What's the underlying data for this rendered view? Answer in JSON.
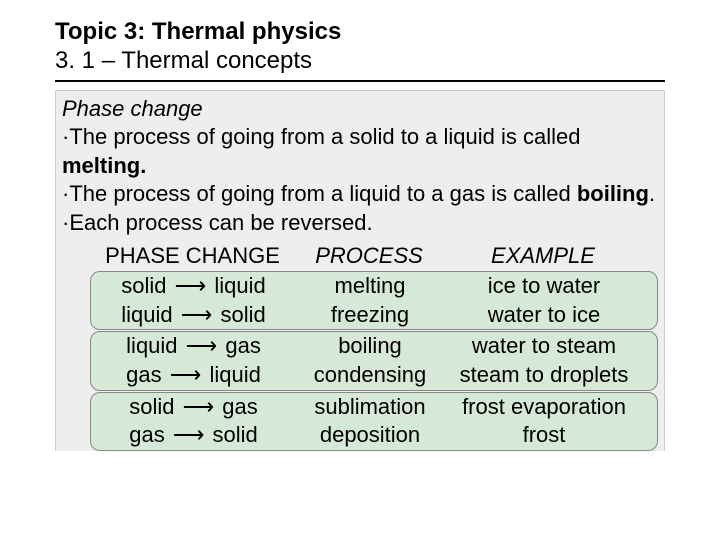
{
  "title": "Topic 3: Thermal physics",
  "subtitle": "3. 1 – Thermal concepts",
  "section_heading": "Phase change",
  "bullets": [
    {
      "pre": "The process of going from a solid to a liquid is called ",
      "bold": "melting.",
      "post": ""
    },
    {
      "pre": "The process of going from a liquid to a gas is called ",
      "bold": "boiling",
      "post": "."
    },
    {
      "pre": "Each process can be reversed.",
      "bold": "",
      "post": ""
    }
  ],
  "table": {
    "headers": {
      "c1": "PHASE CHANGE",
      "c2": "PROCESS",
      "c3": "EXAMPLE"
    },
    "groups": [
      {
        "rows": [
          {
            "from": "solid",
            "to": "liquid",
            "process": "melting",
            "example": "ice to water"
          },
          {
            "from": "liquid",
            "to": "solid",
            "process": "freezing",
            "example": "water to ice"
          }
        ]
      },
      {
        "rows": [
          {
            "from": "liquid",
            "to": "gas",
            "process": "boiling",
            "example": "water to steam"
          },
          {
            "from": "gas",
            "to": "liquid",
            "process": "condensing",
            "example": "steam to droplets"
          }
        ]
      },
      {
        "rows": [
          {
            "from": "solid",
            "to": "gas",
            "process": "sublimation",
            "example": "frost evaporation"
          },
          {
            "from": "gas",
            "to": "solid",
            "process": "deposition",
            "example": "frost"
          }
        ]
      }
    ]
  },
  "colors": {
    "highlight_bg": "#d6e9d6",
    "box_bg": "#eeeeee"
  }
}
